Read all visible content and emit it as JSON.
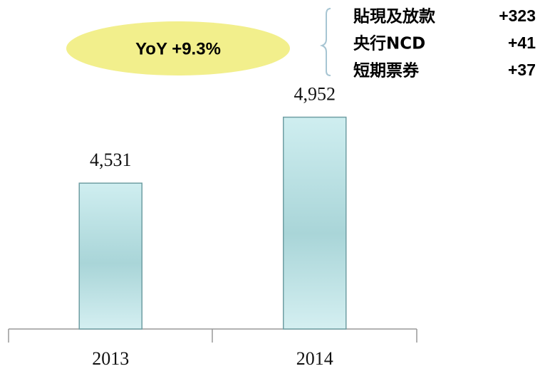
{
  "chart_data": {
    "type": "bar",
    "categories": [
      "2013",
      "2014"
    ],
    "values": [
      4531,
      4952
    ],
    "value_labels": [
      "4,531",
      "4,952"
    ],
    "ylim": [
      3600,
      5100
    ],
    "annotation": "YoY  +9.3%",
    "breakdown": [
      {
        "label": "貼現及放款",
        "value": "+323"
      },
      {
        "label": "央行NCD",
        "value": "+41"
      },
      {
        "label": "短期票券",
        "value": "+37"
      }
    ]
  }
}
